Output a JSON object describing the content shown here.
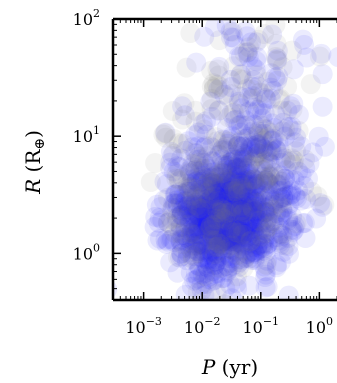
{
  "chart_data": {
    "type": "scatter",
    "title": "",
    "xlabel": {
      "var": "P",
      "unit": " (yr)"
    },
    "ylabel": {
      "var": "R",
      "unit": " (R",
      "sub": "⊕",
      "close": ")"
    },
    "x_scale": "log",
    "y_scale": "log",
    "xlim": [
      0.0003,
      2.0
    ],
    "ylim": [
      0.4,
      100
    ],
    "x_ticks": [
      {
        "value": 0.001,
        "base": "10",
        "exp": "−3"
      },
      {
        "value": 0.01,
        "base": "10",
        "exp": "−2"
      },
      {
        "value": 0.1,
        "base": "10",
        "exp": "−1"
      },
      {
        "value": 1,
        "base": "10",
        "exp": "0"
      }
    ],
    "y_ticks": [
      {
        "value": 1,
        "base": "10",
        "exp": "0"
      },
      {
        "value": 10,
        "base": "10",
        "exp": "1"
      },
      {
        "value": 100,
        "base": "10",
        "exp": "2"
      }
    ],
    "grid": false,
    "point_colors": [
      "#1f1ff5",
      "#7f7f7f"
    ],
    "clusters": [
      {
        "color": "#1f1ff5",
        "center": [
          0.02,
          2.0
        ],
        "spread_dex": [
          0.45,
          0.25
        ],
        "count": 700
      },
      {
        "color": "#1f1ff5",
        "center": [
          0.05,
          2.8
        ],
        "spread_dex": [
          0.5,
          0.3
        ],
        "count": 350
      },
      {
        "color": "#7f7f7f",
        "center": [
          0.03,
          3.5
        ],
        "spread_dex": [
          0.55,
          0.45
        ],
        "count": 220
      },
      {
        "color": "#1f1ff5",
        "center": [
          0.08,
          25
        ],
        "spread_dex": [
          0.6,
          0.45
        ],
        "count": 120
      },
      {
        "color": "#7f7f7f",
        "center": [
          0.08,
          20
        ],
        "spread_dex": [
          0.6,
          0.45
        ],
        "count": 60
      }
    ]
  }
}
